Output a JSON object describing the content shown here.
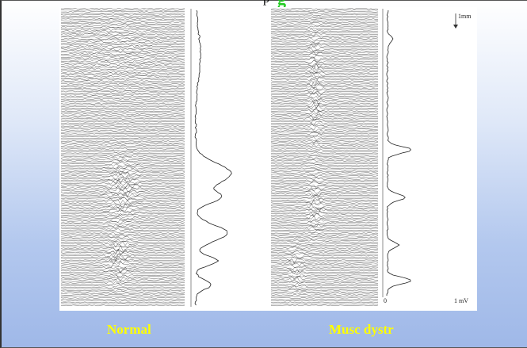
{
  "slide": {
    "title_fragment": "p",
    "title_green": "g"
  },
  "figure": {
    "scale_label": "1mm",
    "axis_zero": "0",
    "axis_max": "1 mV"
  },
  "captions": {
    "left": "Normal",
    "right": "Musc dystr"
  },
  "colors": {
    "caption": "#ffff00",
    "title_green": "#22cc22",
    "trace": "#222222"
  }
}
